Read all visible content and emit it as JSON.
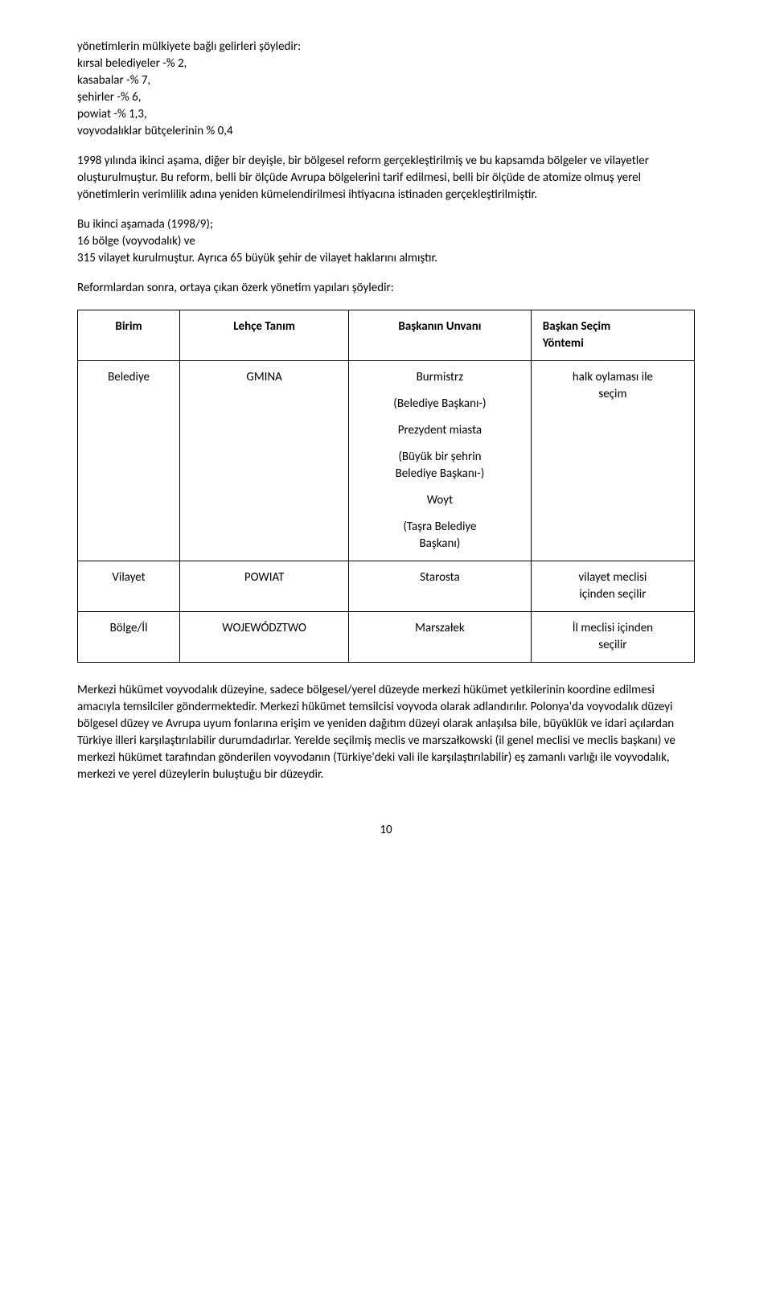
{
  "intro": {
    "l1": "yönetimlerin mülkiyete bağlı gelirleri şöyledir:",
    "l2": "kırsal belediyeler -% 2,",
    "l3": "kasabalar -% 7,",
    "l4": "şehirler -% 6,",
    "l5": "powiat -% 1,3,",
    "l6": "voyvodalıklar bütçelerinin % 0,4"
  },
  "p1": "1998 yılında ikinci aşama, diğer bir deyişle, bir bölgesel reform gerçekleştirilmiş ve bu kapsamda bölgeler ve vilayetler oluşturulmuştur. Bu reform, belli bir ölçüde Avrupa bölgelerini tarif edilmesi, belli bir ölçüde de atomize olmuş yerel yönetimlerin verimlilik adına yeniden kümelendirilmesi ihtiyacına istinaden gerçekleştirilmiştir.",
  "p2": {
    "l1": "Bu ikinci aşamada (1998/9);",
    "l2": "16 bölge (voyvodalık) ve",
    "l3": "315 vilayet kurulmuştur. Ayrıca 65 büyük şehir de vilayet haklarını almıştır."
  },
  "p3": "Reformlardan sonra, ortaya çıkan özerk yönetim yapıları şöyledir:",
  "table": {
    "headers": {
      "c1": "Birim",
      "c2": "Lehçe Tanım",
      "c3": "Başkanın Unvanı",
      "c4_l1": "Başkan Seçim",
      "c4_l2": "Yöntemi"
    },
    "r1": {
      "c1": "Belediye",
      "c2": "GMINA",
      "c3_1": "Burmistrz",
      "c3_2": "(Belediye Başkanı-)",
      "c3_3": "Prezydent miasta",
      "c3_4a": "(Büyük bir şehrin",
      "c3_4b": "Belediye Başkanı-)",
      "c3_5": "Woyt",
      "c3_6a": "(Taşra Belediye",
      "c3_6b": "Başkanı)",
      "c4_l1": "halk oylaması ile",
      "c4_l2": "seçim"
    },
    "r2": {
      "c1": "Vilayet",
      "c2": "POWIAT",
      "c3": "Starosta",
      "c4_l1": "vilayet meclisi",
      "c4_l2": "içinden seçilir"
    },
    "r3": {
      "c1": "Bölge/İl",
      "c2": "WOJEWÓDZTWO",
      "c3": "Marszałek",
      "c4_l1": "İl meclisi içinden",
      "c4_l2": "seçilir"
    }
  },
  "p4": "Merkezi hükümet voyvodalık düzeyine, sadece bölgesel/yerel düzeyde merkezi hükümet yetkilerinin koordine edilmesi amacıyla temsilciler göndermektedir. Merkezi hükümet temsilcisi voyvoda olarak adlandırılır. Polonya'da voyvodalık düzeyi bölgesel düzey ve Avrupa uyum fonlarına erişim ve yeniden dağıtım düzeyi olarak anlaşılsa bile, büyüklük ve idari açılardan Türkiye illeri karşılaştırılabilir durumdadırlar. Yerelde seçilmiş meclis ve marszałkowski (il genel meclisi ve meclis başkanı) ve merkezi hükümet tarafından gönderilen voyvodanın (Türkiye'deki vali ile karşılaştırılabilir) eş zamanlı varlığı ile voyvodalık, merkezi ve yerel düzeylerin buluştuğu bir düzeydir.",
  "page": "10"
}
